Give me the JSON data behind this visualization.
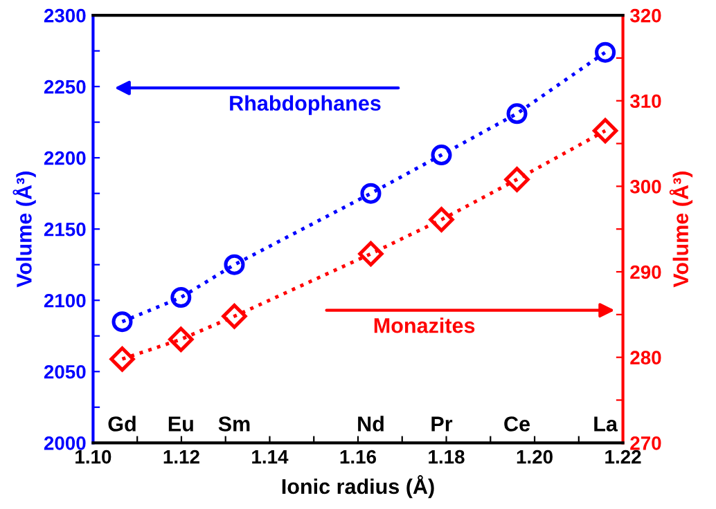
{
  "chart_data": {
    "type": "line",
    "xlabel": "Ionic radius (Å)",
    "ylabel": "Volume (Å³)",
    "y2label": "Volume (Å³)",
    "x": [
      1.1066,
      1.1199,
      1.132,
      1.1629,
      1.1789,
      1.196,
      1.216
    ],
    "series": [
      {
        "name": "Rhabdophanes",
        "color": "#0000ff",
        "marker": "circle",
        "line_style": "dotted",
        "values": [
          2085,
          2102,
          2125,
          2175,
          2202,
          2231,
          2274
        ]
      },
      {
        "name": "Monazites",
        "color": "#ff0000",
        "marker": "diamond",
        "line_style": "dotted",
        "axis": "y2",
        "values": [
          279.8,
          282.1,
          284.8,
          292.1,
          296.1,
          300.8,
          306.5
        ]
      }
    ],
    "annotations": [
      "Gd",
      "Eu",
      "Sm",
      "Nd",
      "Pr",
      "Ce",
      "La"
    ],
    "xlim": [
      1.1,
      1.22
    ],
    "xticks": [
      {
        "value": 1.1,
        "label": "1.10"
      },
      {
        "value": 1.11,
        "label": null
      },
      1.12,
      {
        "value": 1.13,
        "label": null
      },
      1.14,
      {
        "value": 1.15,
        "label": null
      },
      1.16,
      {
        "value": 1.17,
        "label": null
      },
      1.18,
      {
        "value": 1.19,
        "label": null
      },
      {
        "value": 1.2,
        "label": "1.20"
      },
      {
        "value": 1.21,
        "label": null
      },
      1.22
    ],
    "ylim": [
      2000,
      2300
    ],
    "yticks": [
      2000,
      {
        "value": 2025,
        "label": null
      },
      2050,
      {
        "value": 2075,
        "label": null
      },
      2100,
      {
        "value": 2125,
        "label": null
      },
      2150,
      {
        "value": 2175,
        "label": null
      },
      2200,
      {
        "value": 2225,
        "label": null
      },
      2250,
      {
        "value": 2275,
        "label": null
      },
      2300
    ],
    "y2lim": [
      270,
      320
    ],
    "y2ticks": [
      270,
      {
        "value": 275,
        "label": null
      },
      280,
      {
        "value": 285,
        "label": null
      },
      290,
      {
        "value": 295,
        "label": null
      },
      300,
      {
        "value": 305,
        "label": null
      },
      310,
      {
        "value": 315,
        "label": null
      },
      320
    ],
    "grid": false,
    "legend": false
  }
}
